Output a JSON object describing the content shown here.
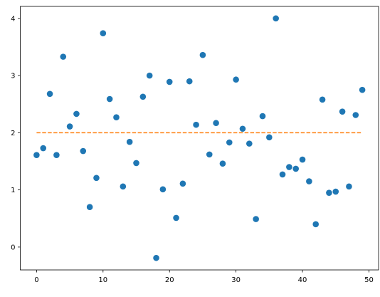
{
  "chart_data": {
    "type": "scatter",
    "x": [
      0,
      1,
      2,
      3,
      4,
      5,
      6,
      7,
      8,
      9,
      10,
      11,
      12,
      13,
      14,
      15,
      16,
      17,
      18,
      19,
      20,
      21,
      22,
      23,
      24,
      25,
      26,
      27,
      28,
      29,
      30,
      31,
      32,
      33,
      34,
      35,
      36,
      37,
      38,
      39,
      40,
      41,
      42,
      43,
      44,
      45,
      46,
      47,
      48,
      49
    ],
    "series": [
      {
        "kind": "scatter",
        "color": "#1f77b4",
        "values": [
          1.61,
          1.73,
          2.68,
          1.61,
          3.33,
          2.11,
          2.33,
          1.68,
          0.7,
          1.21,
          3.74,
          2.59,
          2.27,
          1.06,
          1.84,
          1.47,
          2.63,
          3.0,
          -0.19,
          1.01,
          2.89,
          0.51,
          1.11,
          2.9,
          2.14,
          3.36,
          1.62,
          2.17,
          1.46,
          1.83,
          2.93,
          2.07,
          1.81,
          0.49,
          2.29,
          1.92,
          4.0,
          1.27,
          1.4,
          1.37,
          1.53,
          1.15,
          0.4,
          2.58,
          0.95,
          0.97,
          2.37,
          1.06,
          2.31,
          2.75
        ]
      },
      {
        "kind": "line",
        "color": "#ff7f0e",
        "dashed": true,
        "x": [
          0,
          49
        ],
        "values": [
          2,
          2
        ]
      }
    ],
    "xlim": [
      -2.45,
      51.45
    ],
    "xticks": [
      0,
      10,
      20,
      30,
      40,
      50
    ],
    "ylim": [
      -0.4,
      4.21
    ],
    "yticks": [
      0,
      1,
      2,
      3,
      4
    ]
  }
}
